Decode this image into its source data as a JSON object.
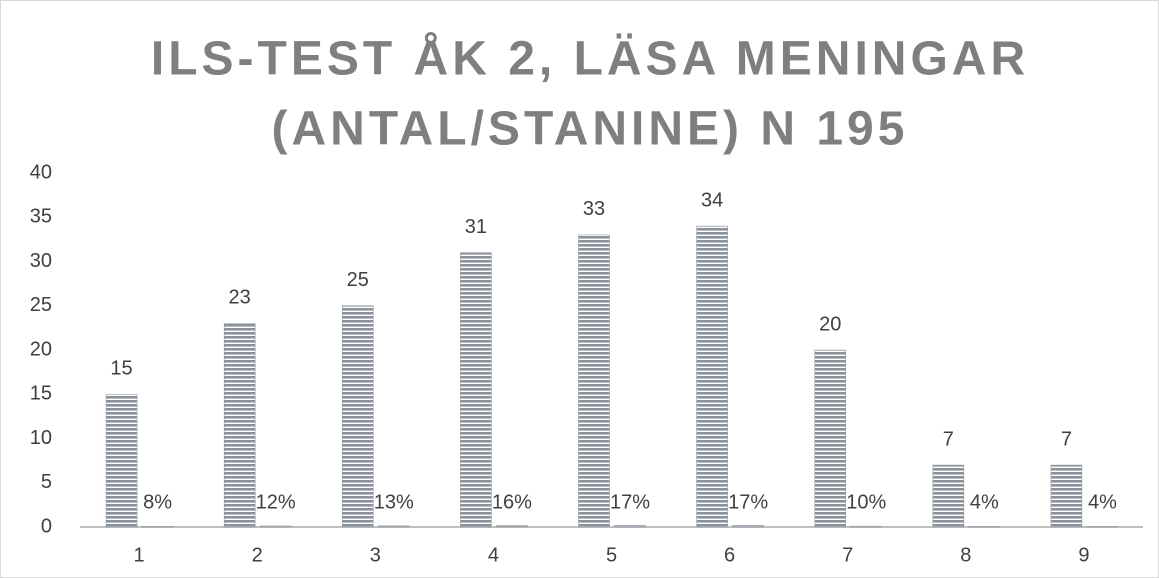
{
  "chart_data": {
    "type": "bar",
    "title": [
      "ILS-TEST ÅK 2, LÄSA MENINGAR",
      "(ANTAL/STANINE) N 195"
    ],
    "categories": [
      "1",
      "2",
      "3",
      "4",
      "5",
      "6",
      "7",
      "8",
      "9"
    ],
    "series": [
      {
        "color": "#8a929b",
        "values": [
          15,
          23,
          25,
          31,
          33,
          34,
          20,
          7,
          7
        ]
      },
      {
        "color": "#8a929b",
        "values": [
          0.08,
          0.12,
          0.13,
          0.16,
          0.17,
          0.17,
          0.1,
          0.04,
          0.04
        ],
        "value_labels": [
          "8%",
          "12%",
          "13%",
          "16%",
          "17%",
          "17%",
          "10%",
          "4%",
          "4%"
        ]
      }
    ],
    "ylim": [
      0,
      40
    ],
    "yticks": [
      0,
      5,
      10,
      15,
      20,
      25,
      30,
      35,
      40
    ],
    "grid": false
  }
}
